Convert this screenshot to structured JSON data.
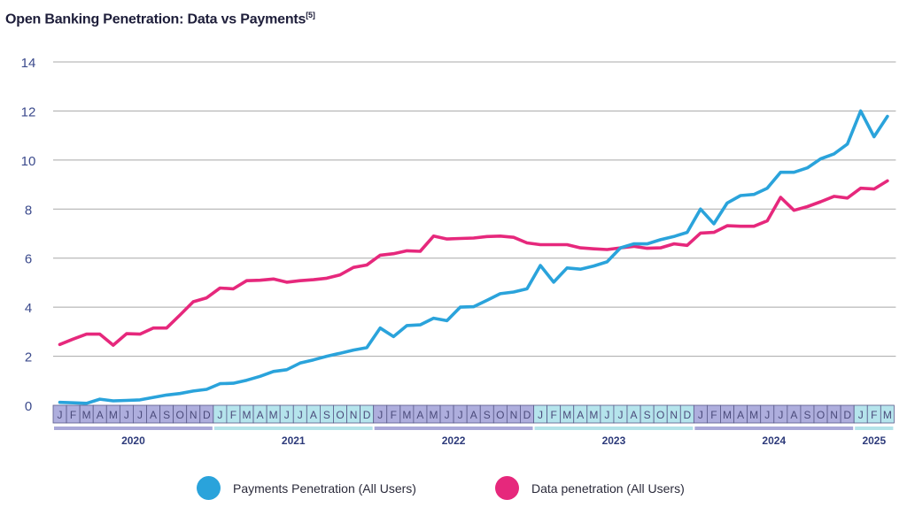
{
  "title": "Open Banking Penetration: Data vs Payments",
  "title_sup": "[5]",
  "colors": {
    "payments": "#2aa3db",
    "data": "#e6287c",
    "month_dark": "#aeaedd",
    "month_light": "#b5e4ec",
    "year_dark": "#a9a8d8",
    "year_light": "#b4e3e8"
  },
  "chart_data": {
    "type": "line",
    "title": "Open Banking Penetration: Data vs Payments",
    "ylim": [
      0,
      14
    ],
    "yticks": [
      0,
      2,
      4,
      6,
      8,
      10,
      12,
      14
    ],
    "grid": true,
    "legend_position": "bottom",
    "years": [
      {
        "label": "2020",
        "months": [
          "J",
          "F",
          "M",
          "A",
          "M",
          "J",
          "J",
          "A",
          "S",
          "O",
          "N",
          "D"
        ]
      },
      {
        "label": "2021",
        "months": [
          "J",
          "F",
          "M",
          "A",
          "M",
          "J",
          "J",
          "A",
          "S",
          "O",
          "N",
          "D"
        ]
      },
      {
        "label": "2022",
        "months": [
          "J",
          "F",
          "M",
          "A",
          "M",
          "J",
          "J",
          "A",
          "S",
          "O",
          "N",
          "D"
        ]
      },
      {
        "label": "2023",
        "months": [
          "J",
          "F",
          "M",
          "A",
          "M",
          "J",
          "J",
          "A",
          "S",
          "O",
          "N",
          "D"
        ]
      },
      {
        "label": "2024",
        "months": [
          "J",
          "F",
          "M",
          "A",
          "M",
          "J",
          "J",
          "A",
          "S",
          "O",
          "N",
          "D"
        ]
      },
      {
        "label": "2025",
        "months": [
          "J",
          "F",
          "M"
        ]
      }
    ],
    "series": [
      {
        "name": "Payments Penetration (All Users)",
        "values": [
          0.12,
          0.1,
          0.08,
          0.25,
          0.18,
          0.2,
          0.22,
          0.32,
          0.42,
          0.48,
          0.58,
          0.65,
          0.88,
          0.9,
          1.02,
          1.18,
          1.38,
          1.45,
          1.72,
          1.85,
          2.0,
          2.12,
          2.25,
          2.35,
          3.15,
          2.8,
          3.25,
          3.28,
          3.55,
          3.45,
          4.0,
          4.02,
          4.28,
          4.55,
          4.62,
          4.75,
          5.7,
          5.02,
          5.6,
          5.55,
          5.68,
          5.85,
          6.42,
          6.58,
          6.58,
          6.75,
          6.88,
          7.05,
          8.0,
          7.4,
          8.25,
          8.55,
          8.6,
          8.85,
          9.5,
          9.5,
          9.68,
          10.05,
          10.25,
          10.65,
          12.0,
          10.95,
          11.78
        ]
      },
      {
        "name": "Data penetration (All Users)",
        "values": [
          2.48,
          2.7,
          2.9,
          2.9,
          2.45,
          2.92,
          2.9,
          3.15,
          3.15,
          3.68,
          4.22,
          4.38,
          4.78,
          4.75,
          5.08,
          5.1,
          5.15,
          5.02,
          5.08,
          5.12,
          5.18,
          5.32,
          5.62,
          5.72,
          6.12,
          6.18,
          6.3,
          6.28,
          6.9,
          6.78,
          6.8,
          6.82,
          6.88,
          6.9,
          6.85,
          6.62,
          6.55,
          6.55,
          6.55,
          6.42,
          6.38,
          6.35,
          6.42,
          6.48,
          6.4,
          6.42,
          6.58,
          6.52,
          7.02,
          7.05,
          7.32,
          7.3,
          7.3,
          7.52,
          8.48,
          7.95,
          8.1,
          8.3,
          8.52,
          8.45,
          8.85,
          8.82,
          9.15
        ]
      }
    ]
  },
  "legend": {
    "payments_label": "Payments Penetration (All Users)",
    "data_label": "Data penetration (All Users)"
  }
}
